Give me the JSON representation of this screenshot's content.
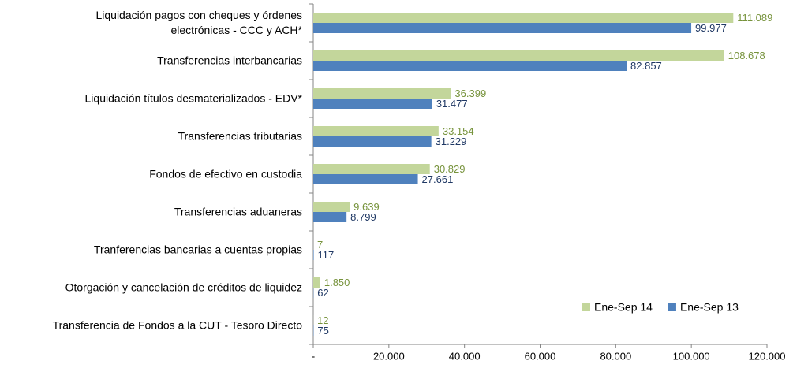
{
  "chart_data": {
    "type": "barh",
    "categories": [
      "Liquidación pagos con cheques y órdenes electrónicas - CCC y ACH*",
      "Transferencias interbancarias",
      "Liquidación títulos desmaterializados - EDV*",
      "Transferencias tributarias",
      "Fondos de efectivo en custodia",
      "Transferencias aduaneras",
      "Tranferencias bancarias a cuentas propias",
      "Otorgación y cancelación de créditos de liquidez",
      "Transferencia de Fondos a la CUT - Tesoro Directo"
    ],
    "series": [
      {
        "name": "Ene-Sep 14",
        "color": "#c3d69b",
        "label_color": "#77933c",
        "values": [
          111089,
          108678,
          36399,
          33154,
          30829,
          9639,
          7,
          1850,
          12
        ],
        "value_labels": [
          "111.089",
          "108.678",
          "36.399",
          "33.154",
          "30.829",
          "9.639",
          "7",
          "1.850",
          "12"
        ]
      },
      {
        "name": "Ene-Sep 13",
        "color": "#4f81bd",
        "label_color": "#1f3864",
        "values": [
          99977,
          82857,
          31477,
          31229,
          27661,
          8799,
          117,
          62,
          75
        ],
        "value_labels": [
          "99.977",
          "82.857",
          "31.477",
          "31.229",
          "27.661",
          "8.799",
          "117",
          "62",
          "75"
        ]
      }
    ],
    "xlim": [
      0,
      120000
    ],
    "xticks": [
      {
        "value": 0,
        "label": "-"
      },
      {
        "value": 20000,
        "label": "20.000"
      },
      {
        "value": 40000,
        "label": "40.000"
      },
      {
        "value": 60000,
        "label": "60.000"
      },
      {
        "value": 80000,
        "label": "80.000"
      },
      {
        "value": 100000,
        "label": "100.000"
      },
      {
        "value": 120000,
        "label": "120.000"
      }
    ],
    "grid": false,
    "legend": "lower right"
  }
}
